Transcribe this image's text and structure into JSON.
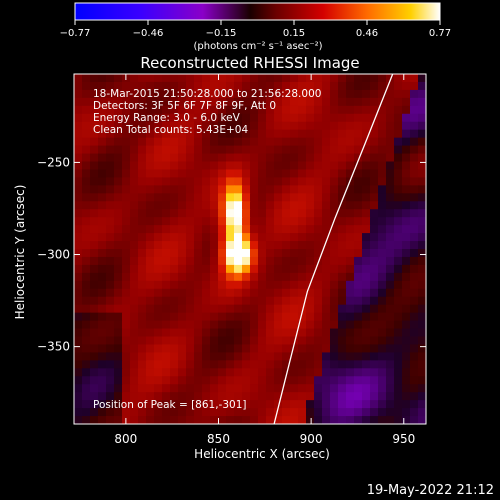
{
  "chart_data": {
    "type": "heatmap",
    "title": "Reconstructed RHESSI Image",
    "xlabel": "Heliocentric X (arcsec)",
    "ylabel": "Heliocentric Y (arcsec)",
    "xlim": [
      772,
      962
    ],
    "ylim": [
      -392,
      -202
    ],
    "x_ticks": [
      800,
      850,
      900,
      950
    ],
    "y_ticks": [
      -250,
      -300,
      -350
    ],
    "annotations": [
      "18-Mar-2015 21:50:28.000 to 21:56:28.000",
      "Detectors: 3F 5F 6F 7F 8F 9F, Att 0",
      "Energy Range: 3.0 - 6.0 keV",
      "Clean    Total counts: 5.43E+04"
    ],
    "peak_label": "Position of Peak = [861,-301]",
    "peak": {
      "x": 861,
      "y": -301
    },
    "colorbar": {
      "ticks": [
        "-0.77",
        "-0.46",
        "-0.15",
        "0.15",
        "0.46",
        "0.77"
      ],
      "range": [
        -0.77,
        0.77
      ],
      "units": "(photons cm⁻² s⁻¹ asec⁻²)"
    },
    "source_components": [
      {
        "x": 861,
        "y": -300,
        "sx": 5,
        "sy": 7,
        "amp": 0.77
      },
      {
        "x": 859,
        "y": -277,
        "sx": 4,
        "sy": 10,
        "amp": 0.62
      },
      {
        "x": 857,
        "y": -288,
        "sx": 6,
        "sy": 18,
        "amp": 0.25
      }
    ],
    "limb_curve": [
      [
        944,
        -202
      ],
      [
        929,
        -240
      ],
      [
        913,
        -280
      ],
      [
        898,
        -320
      ],
      [
        880,
        -392
      ]
    ],
    "limb_color": "#ffffff"
  },
  "footer": {
    "timestamp": "19-May-2022 21:12"
  }
}
